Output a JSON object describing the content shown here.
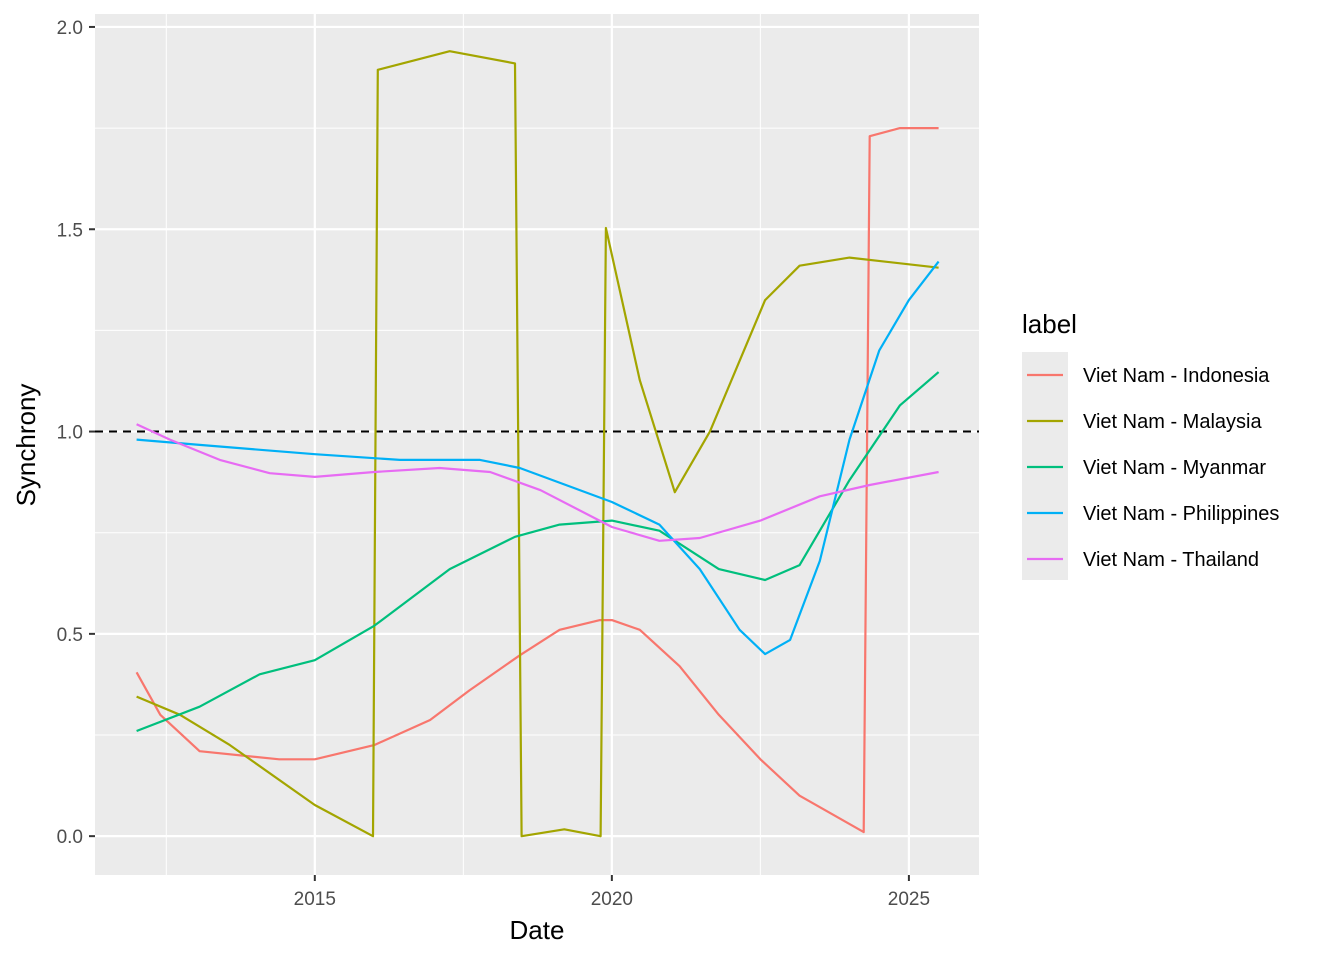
{
  "chart_data": {
    "type": "line",
    "title": "",
    "xlabel": "Date",
    "ylabel": "Synchrony",
    "xlim": [
      2011.3,
      2026.18
    ],
    "ylim": [
      -0.096,
      2.032
    ],
    "x_ticks": [
      2015,
      2020,
      2025
    ],
    "x_tick_labels": [
      "2015",
      "2020",
      "2025"
    ],
    "y_ticks": [
      0,
      0.5,
      1,
      1.5,
      2
    ],
    "y_tick_labels": [
      "0.0",
      "0.5",
      "1.0",
      "1.5",
      "2.0"
    ],
    "grid": true,
    "reference_line": {
      "y": 1.0,
      "style": "dashed",
      "color": "#000000"
    },
    "legend": {
      "title": "label",
      "placement": "right"
    },
    "series": [
      {
        "name": "Viet Nam - Indonesia",
        "color": "#F8766D",
        "points": [
          [
            2012.0,
            0.405
          ],
          [
            2012.4,
            0.3
          ],
          [
            2013.06,
            0.21
          ],
          [
            2014.4,
            0.19
          ],
          [
            2015.0,
            0.19
          ],
          [
            2016.0,
            0.225
          ],
          [
            2016.94,
            0.287
          ],
          [
            2017.6,
            0.36
          ],
          [
            2018.45,
            0.447
          ],
          [
            2019.12,
            0.51
          ],
          [
            2019.8,
            0.534
          ],
          [
            2020.0,
            0.534
          ],
          [
            2020.47,
            0.51
          ],
          [
            2021.14,
            0.42
          ],
          [
            2021.8,
            0.3
          ],
          [
            2022.5,
            0.19
          ],
          [
            2023.16,
            0.1
          ],
          [
            2024.24,
            0.01
          ],
          [
            2024.34,
            1.73
          ],
          [
            2024.85,
            1.75
          ],
          [
            2025.5,
            1.75
          ]
        ]
      },
      {
        "name": "Viet Nam - Malaysia",
        "color": "#A3A500",
        "points": [
          [
            2012.0,
            0.345
          ],
          [
            2012.73,
            0.3
          ],
          [
            2013.57,
            0.225
          ],
          [
            2015.0,
            0.077
          ],
          [
            2015.98,
            0.0
          ],
          [
            2016.06,
            1.894
          ],
          [
            2017.27,
            1.94
          ],
          [
            2018.37,
            1.91
          ],
          [
            2018.48,
            0.0
          ],
          [
            2019.2,
            0.017
          ],
          [
            2019.81,
            0.0
          ],
          [
            2019.9,
            1.503
          ],
          [
            2020.47,
            1.127
          ],
          [
            2021.06,
            0.85
          ],
          [
            2021.65,
            1.0
          ],
          [
            2022.58,
            1.325
          ],
          [
            2023.16,
            1.41
          ],
          [
            2024.0,
            1.43
          ],
          [
            2025.5,
            1.405
          ]
        ]
      },
      {
        "name": "Viet Nam - Myanmar",
        "color": "#00BF7D",
        "points": [
          [
            2012.0,
            0.26
          ],
          [
            2013.06,
            0.32
          ],
          [
            2014.07,
            0.4
          ],
          [
            2015.0,
            0.435
          ],
          [
            2016.0,
            0.52
          ],
          [
            2017.27,
            0.66
          ],
          [
            2018.37,
            0.74
          ],
          [
            2019.12,
            0.77
          ],
          [
            2020.0,
            0.78
          ],
          [
            2020.8,
            0.755
          ],
          [
            2021.8,
            0.66
          ],
          [
            2022.58,
            0.633
          ],
          [
            2023.16,
            0.67
          ],
          [
            2024.0,
            0.88
          ],
          [
            2024.85,
            1.065
          ],
          [
            2025.5,
            1.147
          ]
        ]
      },
      {
        "name": "Viet Nam - Philippines",
        "color": "#00B0F6",
        "points": [
          [
            2012.0,
            0.98
          ],
          [
            2013.06,
            0.967
          ],
          [
            2015.0,
            0.944
          ],
          [
            2016.43,
            0.93
          ],
          [
            2017.78,
            0.93
          ],
          [
            2018.45,
            0.91
          ],
          [
            2020.0,
            0.826
          ],
          [
            2020.8,
            0.77
          ],
          [
            2021.48,
            0.66
          ],
          [
            2022.15,
            0.51
          ],
          [
            2022.58,
            0.45
          ],
          [
            2023.0,
            0.485
          ],
          [
            2023.5,
            0.68
          ],
          [
            2024.0,
            0.98
          ],
          [
            2024.5,
            1.2
          ],
          [
            2025.0,
            1.325
          ],
          [
            2025.5,
            1.42
          ]
        ]
      },
      {
        "name": "Viet Nam - Thailand",
        "color": "#E76BF3",
        "points": [
          [
            2012.0,
            1.018
          ],
          [
            2012.56,
            0.98
          ],
          [
            2013.4,
            0.93
          ],
          [
            2014.24,
            0.897
          ],
          [
            2015.0,
            0.888
          ],
          [
            2016.0,
            0.9
          ],
          [
            2017.1,
            0.91
          ],
          [
            2017.95,
            0.9
          ],
          [
            2018.8,
            0.855
          ],
          [
            2020.0,
            0.764
          ],
          [
            2020.8,
            0.73
          ],
          [
            2021.48,
            0.737
          ],
          [
            2022.5,
            0.78
          ],
          [
            2023.5,
            0.84
          ],
          [
            2024.34,
            0.868
          ],
          [
            2025.5,
            0.9
          ]
        ]
      }
    ]
  }
}
